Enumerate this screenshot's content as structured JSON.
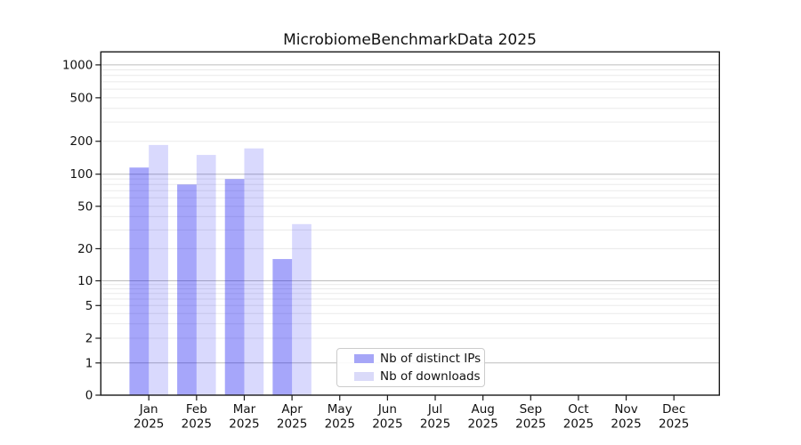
{
  "title": "MicrobiomeBenchmarkData 2025",
  "legend": {
    "items": [
      {
        "label": "Nb of distinct IPs",
        "color": "#a6a6f7",
        "fill": "rgba(0,0,240,0.35)"
      },
      {
        "label": "Nb of downloads",
        "color": "#dadaf9",
        "fill": "rgba(0,0,240,0.15)"
      }
    ]
  },
  "chart_data": {
    "type": "bar",
    "title": "MicrobiomeBenchmarkData 2025",
    "categories": [
      "Jan 2025",
      "Feb 2025",
      "Mar 2025",
      "Apr 2025",
      "May 2025",
      "Jun 2025",
      "Jul 2025",
      "Aug 2025",
      "Sep 2025",
      "Oct 2025",
      "Nov 2025",
      "Dec 2025"
    ],
    "months": [
      "Jan",
      "Feb",
      "Mar",
      "Apr",
      "May",
      "Jun",
      "Jul",
      "Aug",
      "Sep",
      "Oct",
      "Nov",
      "Dec"
    ],
    "year": "2025",
    "series": [
      {
        "name": "Nb of distinct IPs",
        "values": [
          115,
          80,
          90,
          16,
          0,
          0,
          0,
          0,
          0,
          0,
          0,
          0
        ]
      },
      {
        "name": "Nb of downloads",
        "values": [
          185,
          150,
          172,
          34,
          0,
          0,
          0,
          0,
          0,
          0,
          0,
          0
        ]
      }
    ],
    "yscale": "symlog",
    "ytick_values": [
      0,
      1,
      2,
      5,
      10,
      20,
      50,
      100,
      200,
      500,
      1000
    ],
    "grid": true,
    "legend_position": "lower center",
    "colors": {
      "grid_major": "#bdbdbd",
      "grid_minor": "#eaeaea",
      "spine": "#1a1a1a",
      "text": "#111111"
    }
  }
}
